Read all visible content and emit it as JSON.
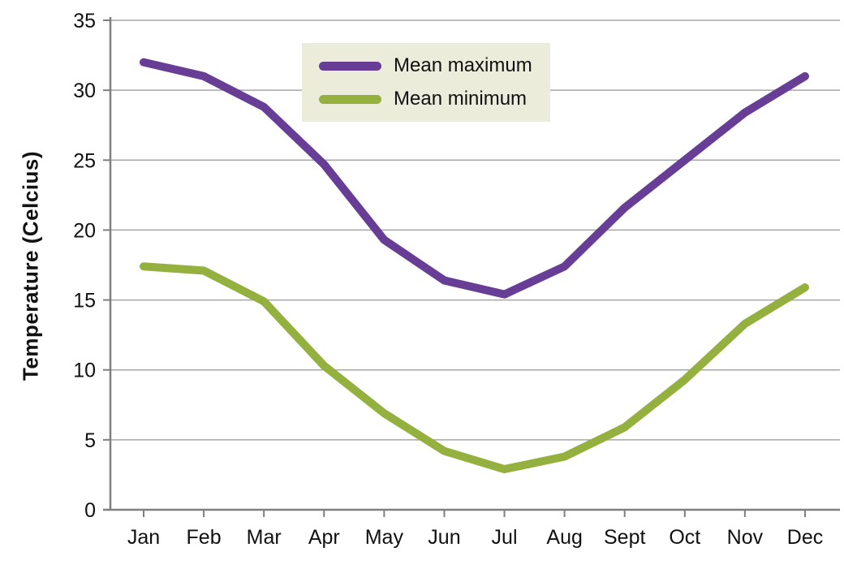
{
  "chart_data": {
    "type": "line",
    "title": "",
    "categories": [
      "Jan",
      "Feb",
      "Mar",
      "Apr",
      "May",
      "Jun",
      "Jul",
      "Aug",
      "Sept",
      "Oct",
      "Nov",
      "Dec"
    ],
    "series": [
      {
        "name": "Mean maximum",
        "color": "#673d96",
        "values": [
          32.0,
          31.0,
          28.8,
          24.7,
          19.3,
          16.4,
          15.4,
          17.4,
          21.6,
          25.0,
          28.4,
          31.0
        ]
      },
      {
        "name": "Mean minimum",
        "color": "#94b13f",
        "values": [
          17.4,
          17.1,
          14.9,
          10.3,
          6.9,
          4.2,
          2.9,
          3.8,
          5.9,
          9.3,
          13.3,
          15.9
        ]
      }
    ],
    "xlabel": "",
    "ylabel": "Temperature (Celcius)",
    "ylim": [
      0,
      35
    ],
    "yticks": [
      0,
      5,
      10,
      15,
      20,
      25,
      30,
      35
    ],
    "grid": true,
    "legend": {
      "position": "top-center",
      "background": "#ebecd9"
    },
    "colors": {
      "axis": "#7f7f7f",
      "gridline": "#a6a6a6",
      "text": "#111111"
    }
  }
}
